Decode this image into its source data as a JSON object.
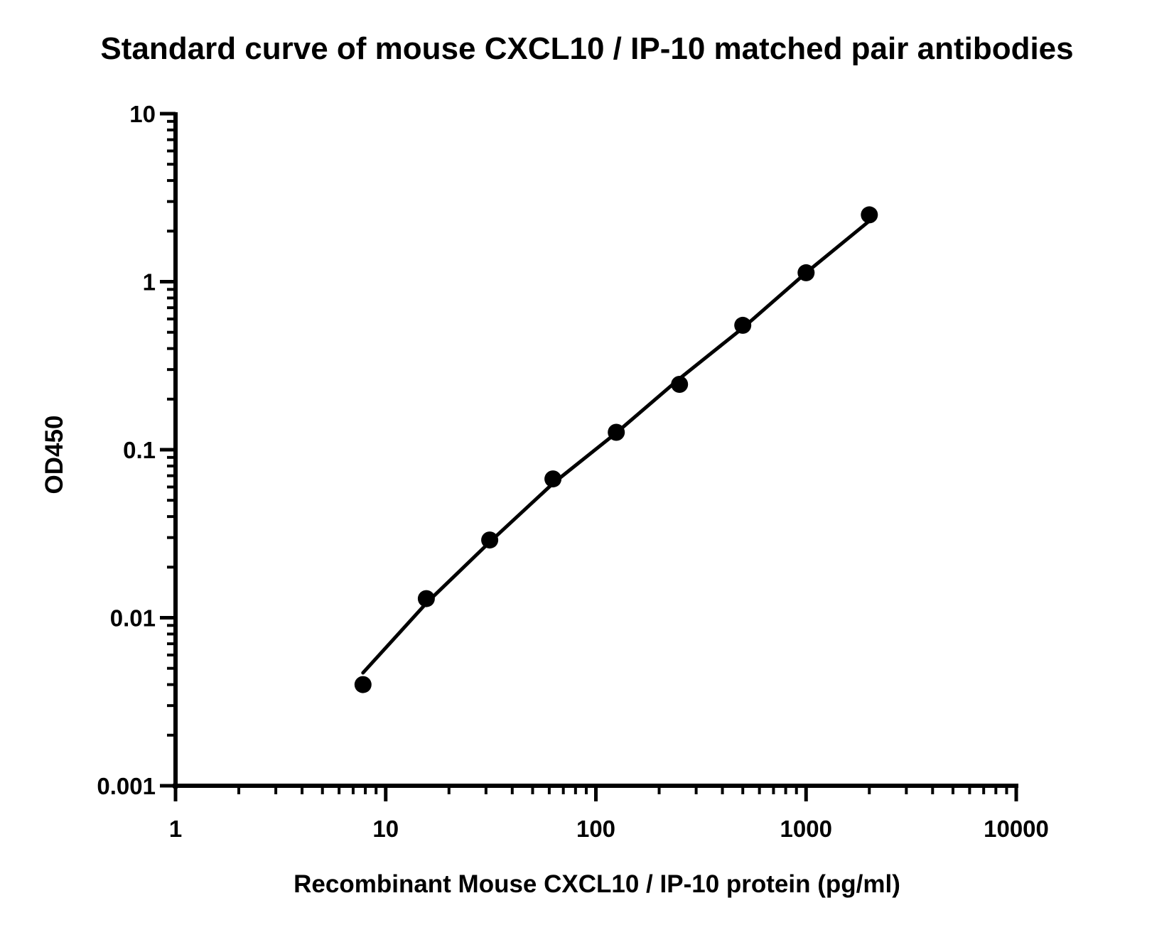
{
  "chart_data": {
    "type": "scatter",
    "title": "Standard curve of mouse CXCL10 / IP-10 matched pair antibodies",
    "xlabel": "Recombinant Mouse CXCL10 / IP-10 protein (pg/ml)",
    "ylabel": "OD450",
    "xscale": "log",
    "yscale": "log",
    "xlim": [
      1,
      10000
    ],
    "ylim": [
      0.001,
      10
    ],
    "xticks": [
      "1",
      "10",
      "100",
      "1000",
      "10000"
    ],
    "yticks": [
      "0.001",
      "0.01",
      "0.1",
      "1",
      "10"
    ],
    "grid": false,
    "colors": {
      "marker": "#000000",
      "line": "#000000",
      "axis": "#000000"
    },
    "series": [
      {
        "mode": "markers",
        "x": [
          7.8,
          15.6,
          31.25,
          62.5,
          125,
          250,
          500,
          1000,
          2000
        ],
        "y": [
          0.004,
          0.013,
          0.029,
          0.067,
          0.127,
          0.245,
          0.55,
          1.13,
          2.5
        ]
      },
      {
        "mode": "fit-line",
        "x": [
          7.8,
          15.6,
          31.25,
          62.5,
          125,
          250,
          500,
          1000,
          2000
        ],
        "y": [
          0.0047,
          0.0122,
          0.0282,
          0.063,
          0.126,
          0.265,
          0.53,
          1.13,
          2.3
        ]
      }
    ]
  }
}
